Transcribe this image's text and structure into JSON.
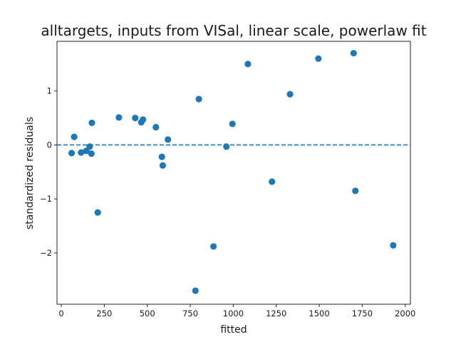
{
  "chart_data": {
    "type": "scatter",
    "title": "alltargets, inputs from VISal, linear scale, powerlaw fit",
    "xlabel": "fitted",
    "ylabel": "standardized residuals",
    "xlim": [
      -25,
      2030
    ],
    "ylim": [
      -2.95,
      1.92
    ],
    "xticks": [
      0,
      250,
      500,
      750,
      1000,
      1250,
      1500,
      1750,
      2000
    ],
    "yticks": [
      -2,
      -1,
      0,
      1
    ],
    "ytick_labels": [
      "−2",
      "−1",
      "0",
      "1"
    ],
    "reference_line": {
      "y": 0,
      "style": "dashed"
    },
    "grid": false,
    "marker_color": "#1f77b4",
    "points": [
      {
        "x": 60,
        "y": -0.15
      },
      {
        "x": 75,
        "y": 0.15
      },
      {
        "x": 115,
        "y": -0.14
      },
      {
        "x": 145,
        "y": -0.11
      },
      {
        "x": 165,
        "y": -0.03
      },
      {
        "x": 175,
        "y": -0.16
      },
      {
        "x": 178,
        "y": 0.41
      },
      {
        "x": 212,
        "y": -1.25
      },
      {
        "x": 335,
        "y": 0.51
      },
      {
        "x": 430,
        "y": 0.5
      },
      {
        "x": 465,
        "y": 0.42
      },
      {
        "x": 475,
        "y": 0.47
      },
      {
        "x": 550,
        "y": 0.33
      },
      {
        "x": 585,
        "y": -0.22
      },
      {
        "x": 590,
        "y": -0.38
      },
      {
        "x": 620,
        "y": 0.1
      },
      {
        "x": 780,
        "y": -2.7
      },
      {
        "x": 800,
        "y": 0.85
      },
      {
        "x": 885,
        "y": -1.88
      },
      {
        "x": 960,
        "y": -0.03
      },
      {
        "x": 995,
        "y": 0.39
      },
      {
        "x": 1085,
        "y": 1.5
      },
      {
        "x": 1225,
        "y": -0.68
      },
      {
        "x": 1330,
        "y": 0.94
      },
      {
        "x": 1495,
        "y": 1.6
      },
      {
        "x": 1700,
        "y": 1.7
      },
      {
        "x": 1710,
        "y": -0.85
      },
      {
        "x": 1930,
        "y": -1.86
      }
    ]
  }
}
